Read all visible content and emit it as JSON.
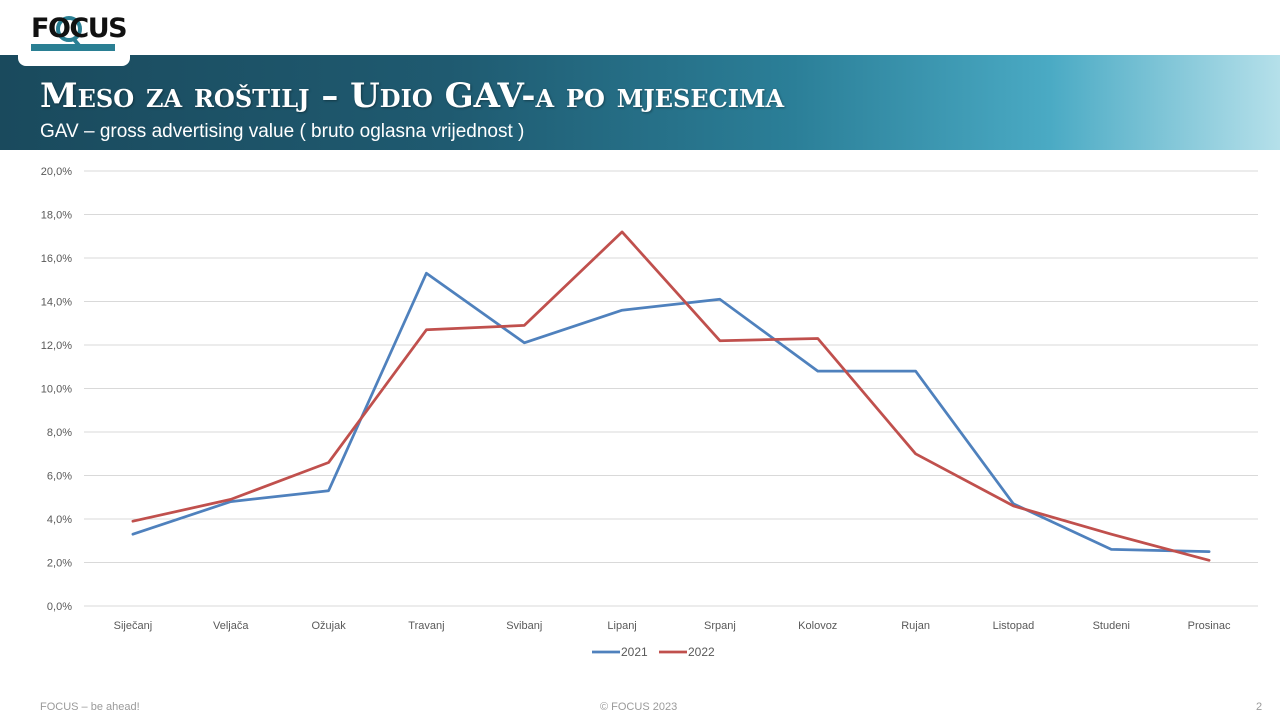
{
  "header": {
    "logo_text": "FOCUS",
    "title": "Meso za roštilj – Udio GAV-a po mjesecima",
    "subtitle": "GAV – gross advertising value ( bruto oglasna vrijednost )"
  },
  "chart_data": {
    "type": "line",
    "categories": [
      "Siječanj",
      "Veljača",
      "Ožujak",
      "Travanj",
      "Svibanj",
      "Lipanj",
      "Srpanj",
      "Kolovoz",
      "Rujan",
      "Listopad",
      "Studeni",
      "Prosinac"
    ],
    "series": [
      {
        "name": "2021",
        "color": "#4f81bd",
        "values": [
          3.3,
          4.8,
          5.3,
          15.3,
          12.1,
          13.6,
          14.1,
          10.8,
          10.8,
          4.7,
          2.6,
          2.5
        ]
      },
      {
        "name": "2022",
        "color": "#c0504d",
        "values": [
          3.9,
          4.9,
          6.6,
          12.7,
          12.9,
          17.2,
          12.2,
          12.3,
          7.0,
          4.6,
          3.3,
          2.1
        ]
      }
    ],
    "yticks": [
      "0,0%",
      "2,0%",
      "4,0%",
      "6,0%",
      "8,0%",
      "10,0%",
      "12,0%",
      "14,0%",
      "16,0%",
      "18,0%",
      "20,0%"
    ],
    "ylim": [
      0,
      20
    ],
    "grid": true,
    "legend": "bottom-center",
    "gridColor": "#d9d9d9"
  },
  "footer": {
    "left": "FOCUS – be ahead!",
    "center": "© FOCUS 2023",
    "page": "2"
  }
}
